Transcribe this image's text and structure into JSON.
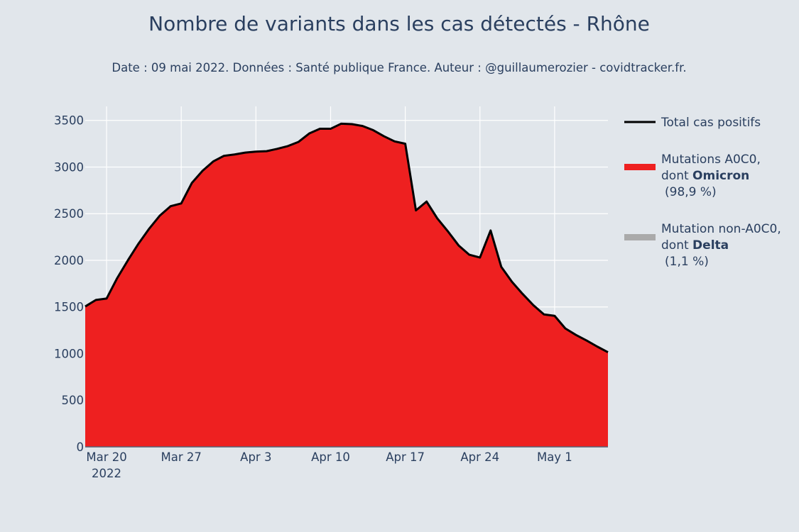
{
  "chart_data": {
    "type": "area",
    "title": "Nombre de variants dans les cas détectés - Rhône",
    "subtitle": "Date : 09 mai 2022. Données : Santé publique France. Auteur : @guillaumerozier - covidtracker.fr.",
    "x_start": "2022-03-18",
    "x_dates": [
      "2022-03-18",
      "2022-03-19",
      "2022-03-20",
      "2022-03-21",
      "2022-03-22",
      "2022-03-23",
      "2022-03-24",
      "2022-03-25",
      "2022-03-26",
      "2022-03-27",
      "2022-03-28",
      "2022-03-29",
      "2022-03-30",
      "2022-03-31",
      "2022-04-01",
      "2022-04-02",
      "2022-04-03",
      "2022-04-04",
      "2022-04-05",
      "2022-04-06",
      "2022-04-07",
      "2022-04-08",
      "2022-04-09",
      "2022-04-10",
      "2022-04-11",
      "2022-04-12",
      "2022-04-13",
      "2022-04-14",
      "2022-04-15",
      "2022-04-16",
      "2022-04-17",
      "2022-04-18",
      "2022-04-19",
      "2022-04-20",
      "2022-04-21",
      "2022-04-22",
      "2022-04-23",
      "2022-04-24",
      "2022-04-25",
      "2022-04-26",
      "2022-04-27",
      "2022-04-28",
      "2022-04-29",
      "2022-04-30",
      "2022-05-01",
      "2022-05-02",
      "2022-05-03",
      "2022-05-04",
      "2022-05-05",
      "2022-05-06"
    ],
    "x_ticks": [
      {
        "date": "2022-03-20",
        "label": "Mar 20",
        "sublabel": "2022"
      },
      {
        "date": "2022-03-27",
        "label": "Mar 27",
        "sublabel": ""
      },
      {
        "date": "2022-04-03",
        "label": "Apr 3",
        "sublabel": ""
      },
      {
        "date": "2022-04-10",
        "label": "Apr 10",
        "sublabel": ""
      },
      {
        "date": "2022-04-17",
        "label": "Apr 17",
        "sublabel": ""
      },
      {
        "date": "2022-04-24",
        "label": "Apr 24",
        "sublabel": ""
      },
      {
        "date": "2022-05-01",
        "label": "May 1",
        "sublabel": ""
      }
    ],
    "y_ticks": [
      0,
      500,
      1000,
      1500,
      2000,
      2500,
      3000,
      3500
    ],
    "ylim": [
      0,
      3650
    ],
    "grid": true,
    "legend_position": "right",
    "series": [
      {
        "name": "Total cas positifs",
        "style": "line",
        "color": "#000000",
        "values": [
          1505,
          1575,
          1590,
          1810,
          2000,
          2180,
          2340,
          2480,
          2580,
          2610,
          2830,
          2960,
          3060,
          3120,
          3135,
          3155,
          3165,
          3170,
          3195,
          3225,
          3270,
          3360,
          3410,
          3410,
          3465,
          3460,
          3440,
          3395,
          3330,
          3275,
          3250,
          2535,
          2630,
          2450,
          2310,
          2160,
          2060,
          2030,
          2320,
          1930,
          1770,
          1640,
          1520,
          1420,
          1405,
          1270,
          1200,
          1140,
          1075,
          1015
        ]
      },
      {
        "name": "Mutations A0C0, dont Omicron (98,9 %)",
        "style": "area",
        "color": "#ee2020",
        "values": [
          1505,
          1575,
          1590,
          1810,
          2000,
          2180,
          2340,
          2480,
          2580,
          2610,
          2830,
          2960,
          3060,
          3120,
          3135,
          3155,
          3165,
          3170,
          3195,
          3225,
          3270,
          3360,
          3410,
          3410,
          3465,
          3460,
          3440,
          3395,
          3330,
          3275,
          3250,
          2535,
          2630,
          2450,
          2310,
          2160,
          2060,
          2030,
          2320,
          1930,
          1770,
          1640,
          1520,
          1420,
          1405,
          1270,
          1200,
          1140,
          1075,
          1015
        ]
      },
      {
        "name": "Mutation non-A0C0, dont Delta (1,1 %)",
        "style": "area",
        "color": "#aaaaaa",
        "values": [
          0,
          0,
          0,
          0,
          0,
          0,
          0,
          0,
          0,
          0,
          0,
          0,
          0,
          0,
          0,
          0,
          0,
          0,
          0,
          0,
          0,
          0,
          0,
          0,
          0,
          0,
          0,
          0,
          0,
          0,
          0,
          0,
          0,
          0,
          0,
          0,
          0,
          0,
          0,
          0,
          0,
          0,
          0,
          0,
          0,
          0,
          0,
          0,
          0,
          0
        ]
      }
    ]
  },
  "legend": {
    "total": {
      "label": "Total cas positifs",
      "color": "#000000"
    },
    "omicron": {
      "line1": "Mutations A0C0,",
      "line2_prefix": "dont ",
      "line2_bold": "Omicron",
      "line3": "(98,9 %)",
      "color": "#ee2020"
    },
    "delta": {
      "line1": "Mutation non-A0C0,",
      "line2_prefix": "dont ",
      "line2_bold": "Delta",
      "line3": "(1,1 %)",
      "color": "#aaaaaa"
    }
  }
}
